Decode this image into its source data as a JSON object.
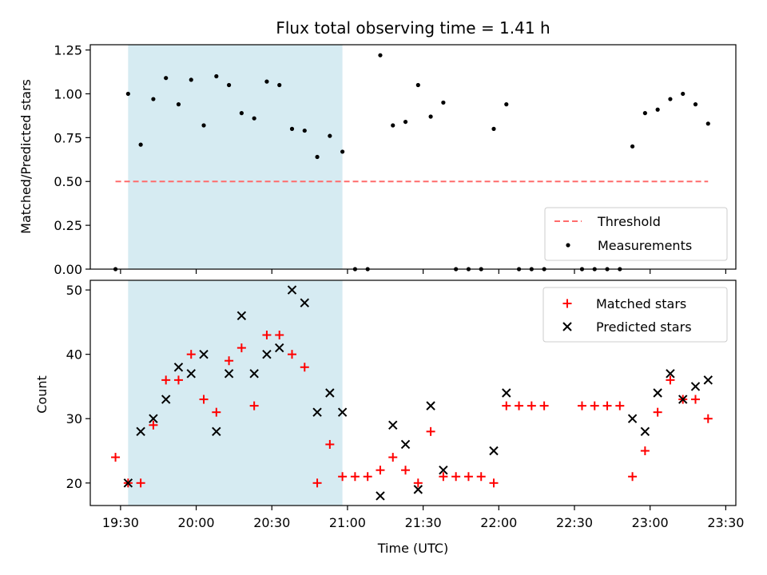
{
  "chart_data": [
    {
      "type": "scatter",
      "title": "Flux total observing time = 1.41 h",
      "xlabel": "",
      "ylabel": "Matched/Predicted stars",
      "xlim": [
        "19:18",
        "23:34"
      ],
      "ylim": [
        0,
        1.28
      ],
      "yticks": [
        0,
        0.25,
        0.5,
        0.75,
        1.0,
        1.25
      ],
      "ytick_labels": [
        "0.00",
        "0.25",
        "0.50",
        "0.75",
        "1.00",
        "1.25"
      ],
      "xticks": [
        "19:30",
        "20:00",
        "20:30",
        "21:00",
        "21:30",
        "22:00",
        "22:30",
        "23:00",
        "23:30"
      ],
      "xtick_labels_shown": false,
      "shaded_region": {
        "x_start": "19:33",
        "x_end": "20:58",
        "color": "#add8e6"
      },
      "legend_placement": "lower-right",
      "series": [
        {
          "name": "Threshold",
          "kind": "dashed-line",
          "color": "#ff6b6b",
          "x": [
            "19:28",
            "23:23"
          ],
          "y": [
            0.5,
            0.5
          ]
        },
        {
          "name": "Measurements",
          "kind": "dots",
          "color": "#000000",
          "x": [
            "19:28",
            "19:33",
            "19:38",
            "19:43",
            "19:48",
            "19:53",
            "19:58",
            "20:03",
            "20:08",
            "20:13",
            "20:18",
            "20:23",
            "20:28",
            "20:33",
            "20:38",
            "20:43",
            "20:48",
            "20:53",
            "20:58",
            "21:03",
            "21:08",
            "21:13",
            "21:18",
            "21:23",
            "21:28",
            "21:33",
            "21:38",
            "21:43",
            "21:48",
            "21:53",
            "21:58",
            "22:03",
            "22:08",
            "22:13",
            "22:18",
            "22:33",
            "22:38",
            "22:43",
            "22:48",
            "22:53",
            "22:58",
            "23:03",
            "23:08",
            "23:13",
            "23:18",
            "23:23"
          ],
          "y": [
            0,
            1.0,
            0.71,
            0.97,
            1.09,
            0.94,
            1.08,
            0.82,
            1.1,
            1.05,
            0.89,
            0.86,
            1.07,
            1.05,
            0.8,
            0.79,
            0.64,
            0.76,
            0.67,
            0,
            0,
            1.22,
            0.82,
            0.84,
            1.05,
            0.87,
            0.95,
            0,
            0,
            0,
            0.8,
            0.94,
            0,
            0,
            0,
            0,
            0,
            0,
            0,
            0.7,
            0.89,
            0.91,
            0.97,
            1.0,
            0.94,
            0.83
          ]
        }
      ]
    },
    {
      "type": "scatter",
      "title": "",
      "xlabel": "Time (UTC)",
      "ylabel": "Count",
      "xlim": [
        "19:18",
        "23:34"
      ],
      "ylim": [
        16.5,
        51.5
      ],
      "yticks": [
        20,
        30,
        40,
        50
      ],
      "ytick_labels": [
        "20",
        "30",
        "40",
        "50"
      ],
      "xticks": [
        "19:30",
        "20:00",
        "20:30",
        "21:00",
        "21:30",
        "22:00",
        "22:30",
        "23:00",
        "23:30"
      ],
      "xtick_labels": [
        "19:30",
        "20:00",
        "20:30",
        "21:00",
        "21:30",
        "22:00",
        "22:30",
        "23:00",
        "23:30"
      ],
      "shaded_region": {
        "x_start": "19:33",
        "x_end": "20:58",
        "color": "#add8e6"
      },
      "legend_placement": "upper-right",
      "series": [
        {
          "name": "Matched stars",
          "marker": "plus",
          "color": "#ff0000",
          "x": [
            "19:28",
            "19:33",
            "19:38",
            "19:43",
            "19:48",
            "19:53",
            "19:58",
            "20:03",
            "20:08",
            "20:13",
            "20:18",
            "20:23",
            "20:28",
            "20:33",
            "20:38",
            "20:43",
            "20:48",
            "20:53",
            "20:58",
            "21:03",
            "21:08",
            "21:13",
            "21:18",
            "21:23",
            "21:28",
            "21:33",
            "21:38",
            "21:43",
            "21:48",
            "21:53",
            "21:58",
            "22:03",
            "22:08",
            "22:13",
            "22:18",
            "22:33",
            "22:38",
            "22:43",
            "22:48",
            "22:53",
            "22:58",
            "23:03",
            "23:08",
            "23:13",
            "23:18",
            "23:23"
          ],
          "y": [
            24,
            20,
            20,
            29,
            36,
            36,
            40,
            33,
            31,
            39,
            41,
            32,
            43,
            43,
            40,
            38,
            20,
            26,
            21,
            21,
            21,
            22,
            24,
            22,
            20,
            28,
            21,
            21,
            21,
            21,
            20,
            32,
            32,
            32,
            32,
            32,
            32,
            32,
            32,
            21,
            25,
            31,
            36,
            33,
            33,
            30
          ]
        },
        {
          "name": "Predicted stars",
          "marker": "x",
          "color": "#000000",
          "x": [
            "19:33",
            "19:38",
            "19:43",
            "19:48",
            "19:53",
            "19:58",
            "20:03",
            "20:08",
            "20:13",
            "20:18",
            "20:23",
            "20:28",
            "20:33",
            "20:38",
            "20:43",
            "20:48",
            "20:53",
            "20:58",
            "21:13",
            "21:18",
            "21:23",
            "21:28",
            "21:33",
            "21:38",
            "21:58",
            "22:03",
            "22:53",
            "22:58",
            "23:03",
            "23:08",
            "23:13",
            "23:18",
            "23:23"
          ],
          "y": [
            20,
            28,
            30,
            33,
            38,
            37,
            40,
            28,
            37,
            46,
            37,
            40,
            41,
            50,
            48,
            31,
            34,
            31,
            18,
            29,
            26,
            19,
            32,
            22,
            25,
            34,
            30,
            28,
            34,
            37,
            33,
            35,
            36
          ]
        }
      ]
    }
  ]
}
